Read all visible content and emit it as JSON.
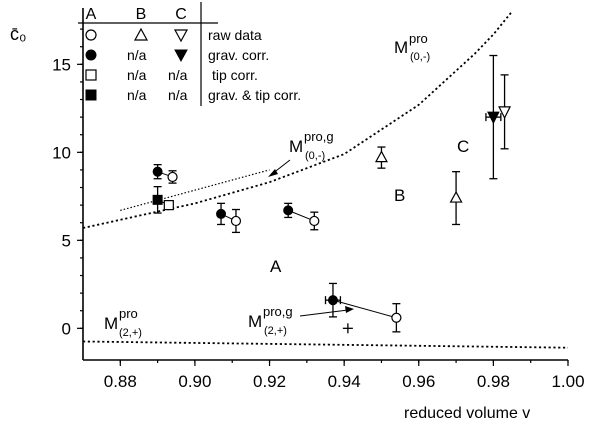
{
  "chart_data": {
    "type": "scatter",
    "xlabel": "reduced volume  v",
    "ylabel": "c̄₀",
    "xlim": [
      0.87,
      1.0
    ],
    "ylim": [
      -1.8,
      18.2
    ],
    "x_ticks": [
      "0.88",
      "0.90",
      "0.92",
      "0.94",
      "0.96",
      "0.98",
      "1.00"
    ],
    "y_ticks": [
      "0",
      "5",
      "10",
      "15"
    ],
    "legend": {
      "columns": [
        "A",
        "B",
        "C"
      ],
      "rows": [
        {
          "A": "circle-open",
          "B": "triangle-up-open",
          "C": "triangle-down-open",
          "label": "raw data"
        },
        {
          "A": "circle-filled",
          "B": "n/a",
          "C": "triangle-down-filled",
          "label": "grav. corr."
        },
        {
          "A": "square-open",
          "B": "n/a",
          "C": "n/a",
          "label": "tip corr."
        },
        {
          "A": "square-filled",
          "B": "n/a",
          "C": "n/a",
          "label": "grav. & tip corr."
        }
      ]
    },
    "series": [
      {
        "name": "M^pro_(0,-)",
        "style": "dashed",
        "x": [
          0.87,
          0.9,
          0.92,
          0.94,
          0.96,
          0.975,
          0.98,
          0.985
        ],
        "y": [
          5.7,
          7.1,
          8.3,
          9.9,
          12.7,
          15.6,
          16.7,
          18.0
        ]
      },
      {
        "name": "M^pro,g_(0,-)",
        "style": "dotted",
        "x": [
          0.88,
          0.92
        ],
        "y": [
          6.7,
          9.0
        ]
      },
      {
        "name": "M^pro_(2,+)",
        "style": "dashed",
        "x": [
          0.87,
          1.0
        ],
        "y": [
          -0.75,
          -1.1
        ]
      },
      {
        "name": "A raw data",
        "marker": "circle-open",
        "points": [
          {
            "x": 0.894,
            "y": 8.6,
            "err": 0.35
          },
          {
            "x": 0.911,
            "y": 6.1,
            "err": 0.65
          },
          {
            "x": 0.932,
            "y": 6.1,
            "err": 0.5
          },
          {
            "x": 0.954,
            "y": 0.6,
            "err": 0.8
          }
        ]
      },
      {
        "name": "A grav. corr.",
        "marker": "circle-filled",
        "points": [
          {
            "x": 0.89,
            "y": 8.9,
            "err": 0.4
          },
          {
            "x": 0.907,
            "y": 6.5,
            "err": 0.6
          },
          {
            "x": 0.925,
            "y": 6.7,
            "err": 0.4
          },
          {
            "x": 0.937,
            "y": 1.6,
            "err": 0.95,
            "xerr": 0.002
          }
        ]
      },
      {
        "name": "A tip corr.",
        "marker": "square-open",
        "points": [
          {
            "x": 0.893,
            "y": 7.0,
            "err": 0
          }
        ]
      },
      {
        "name": "A grav. & tip corr.",
        "marker": "square-filled",
        "points": [
          {
            "x": 0.89,
            "y": 7.3,
            "err": 0.75
          }
        ]
      },
      {
        "name": "B raw data",
        "marker": "triangle-up-open",
        "points": [
          {
            "x": 0.95,
            "y": 9.7,
            "err": 0.6
          },
          {
            "x": 0.97,
            "y": 7.4,
            "err": 1.5
          }
        ]
      },
      {
        "name": "C raw data",
        "marker": "triangle-down-open",
        "points": [
          {
            "x": 0.983,
            "y": 12.3,
            "err": 2.1
          }
        ]
      },
      {
        "name": "C grav. corr.",
        "marker": "triangle-down-filled",
        "points": [
          {
            "x": 0.98,
            "y": 12.0,
            "err": 3.5,
            "xerr": 0.002
          }
        ]
      },
      {
        "name": "M^pro,g_(2,+)",
        "marker": "plus",
        "points": [
          {
            "x": 0.941,
            "y": 0.0,
            "err": 0
          }
        ]
      }
    ],
    "connectors": [
      [
        {
          "x": 0.89,
          "y": 8.9
        },
        {
          "x": 0.894,
          "y": 8.6
        }
      ],
      [
        {
          "x": 0.907,
          "y": 6.5
        },
        {
          "x": 0.911,
          "y": 6.1
        }
      ],
      [
        {
          "x": 0.925,
          "y": 6.7
        },
        {
          "x": 0.932,
          "y": 6.1
        }
      ],
      [
        {
          "x": 0.937,
          "y": 1.6
        },
        {
          "x": 0.954,
          "y": 0.6
        }
      ],
      [
        {
          "x": 0.89,
          "y": 7.3
        },
        {
          "x": 0.893,
          "y": 7.0
        }
      ]
    ],
    "region_labels": [
      "A",
      "B",
      "C"
    ],
    "annotations": {
      "m0_pro": {
        "base": "M",
        "sup": "pro",
        "sub": "(0,-)"
      },
      "m0_prog": {
        "base": "M",
        "sup": "pro,g",
        "sub": "(0,-)"
      },
      "m2_pro": {
        "base": "M",
        "sup": "pro",
        "sub": "(2,+)"
      },
      "m2_prog": {
        "base": "M",
        "sup": "pro,g",
        "sub": "(2,+)"
      }
    }
  }
}
